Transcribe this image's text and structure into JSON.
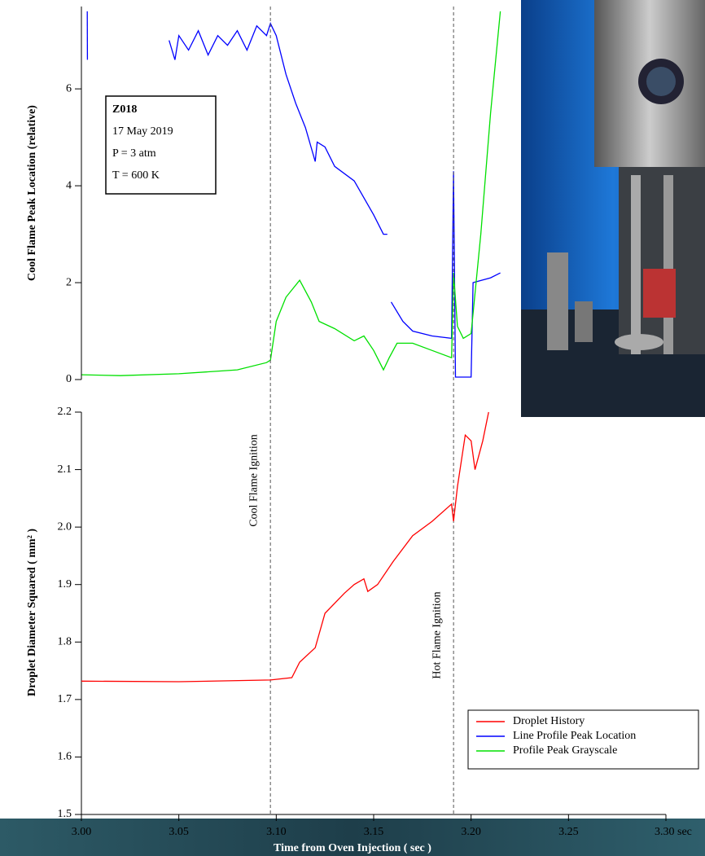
{
  "chart_data": [
    {
      "type": "line",
      "ylabel": "Cool Flame Peak Location (relative)",
      "xlim": [
        3.0,
        3.3
      ],
      "ylim": [
        0,
        7.7
      ],
      "yticks": [
        0,
        2,
        4,
        6
      ],
      "annotation": [
        "Z018",
        "17 May 2019",
        "P = 3 atm",
        "T = 600 K"
      ],
      "series": [
        {
          "name": "Line Profile Peak Location",
          "color": "#0000ff",
          "x": [
            3.003,
            3.0031,
            3.01,
            3.045,
            3.048,
            3.05,
            3.055,
            3.06,
            3.065,
            3.07,
            3.075,
            3.08,
            3.085,
            3.09,
            3.095,
            3.097,
            3.1,
            3.105,
            3.11,
            3.115,
            3.12,
            3.121,
            3.125,
            3.13,
            3.14,
            3.15,
            3.155,
            3.157,
            3.158,
            3.159,
            3.165,
            3.17,
            3.18,
            3.19,
            3.191,
            3.192,
            3.2,
            3.201,
            3.21,
            3.215
          ],
          "values": [
            7.6,
            6.6,
            null,
            7.0,
            6.6,
            7.1,
            6.8,
            7.2,
            6.7,
            7.1,
            6.9,
            7.2,
            6.8,
            7.3,
            7.1,
            7.35,
            7.1,
            6.3,
            5.7,
            5.2,
            4.5,
            4.9,
            4.8,
            4.4,
            4.1,
            3.4,
            3.0,
            3.0,
            null,
            1.6,
            1.2,
            1.0,
            0.9,
            0.85,
            4.3,
            0.05,
            0.05,
            2.0,
            2.1,
            2.2
          ]
        },
        {
          "name": "Profile Peak Grayscale",
          "color": "#00e000",
          "x": [
            3.0,
            3.02,
            3.05,
            3.08,
            3.095,
            3.097,
            3.1,
            3.105,
            3.112,
            3.118,
            3.122,
            3.13,
            3.14,
            3.145,
            3.15,
            3.155,
            3.158,
            3.162,
            3.17,
            3.18,
            3.19,
            3.191,
            3.193,
            3.196,
            3.2,
            3.205,
            3.21,
            3.215
          ],
          "values": [
            0.1,
            0.08,
            0.12,
            0.2,
            0.35,
            0.4,
            1.2,
            1.7,
            2.05,
            1.6,
            1.2,
            1.05,
            0.8,
            0.9,
            0.6,
            0.2,
            0.45,
            0.75,
            0.75,
            0.6,
            0.45,
            2.2,
            1.1,
            0.85,
            0.95,
            3.0,
            5.5,
            7.6
          ]
        }
      ]
    },
    {
      "type": "line",
      "ylabel": "Droplet Diameter Squared ( mm² )",
      "xlabel": "Time from Oven Injection  ( sec )",
      "xlim": [
        3.0,
        3.3
      ],
      "ylim": [
        1.5,
        2.2
      ],
      "xticks": [
        {
          "value": 3.0,
          "label": "3.00"
        },
        3.05,
        {
          "value": 3.1,
          "label": "3.10"
        },
        3.15,
        {
          "value": 3.2,
          "label": "3.20"
        },
        3.25,
        {
          "value": 3.3,
          "label": "3.30 sec"
        }
      ],
      "yticks": [
        1.5,
        1.6,
        1.7,
        1.8,
        1.9,
        {
          "value": 2.0,
          "label": "2.0"
        },
        2.1,
        2.2
      ],
      "markers": [
        {
          "x": 3.097,
          "label": "Cool Flame Ignition"
        },
        {
          "x": 3.191,
          "label": "Hot Flame Ignition"
        }
      ],
      "legend": "lower right",
      "series": [
        {
          "name": "Droplet History",
          "color": "#ff0000",
          "x": [
            3.0,
            3.05,
            3.097,
            3.108,
            3.112,
            3.12,
            3.125,
            3.135,
            3.14,
            3.145,
            3.147,
            3.152,
            3.16,
            3.17,
            3.18,
            3.19,
            3.191,
            3.193,
            3.197,
            3.2,
            3.202,
            3.206,
            3.209
          ],
          "values": [
            1.732,
            1.731,
            1.734,
            1.738,
            1.765,
            1.79,
            1.85,
            1.885,
            1.9,
            1.91,
            1.888,
            1.9,
            1.94,
            1.985,
            2.01,
            2.04,
            2.01,
            2.07,
            2.16,
            2.15,
            2.1,
            2.15,
            2.2
          ]
        }
      ]
    }
  ]
}
